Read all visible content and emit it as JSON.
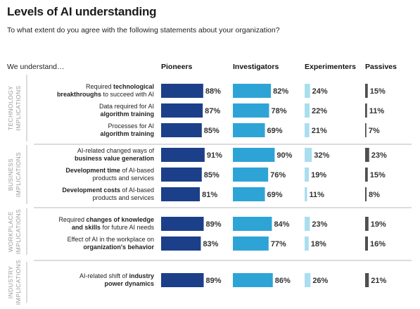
{
  "title": "Levels of AI understanding",
  "subtitle": "To what extent do you agree with the following statements about your organization?",
  "lead": "We understand…",
  "colors": {
    "Pioneers": "#1c3f8a",
    "Investigators": "#2ea4d6",
    "Experimenters": "#a9deef",
    "Passives": "#4f4f4f",
    "highlight": "#8b1a2b",
    "divider": "#b9b9b9",
    "category": "#9a9a9a"
  },
  "chart_data": {
    "type": "bar",
    "orientation": "horizontal",
    "title": "Levels of AI understanding",
    "subtitle": "To what extent do you agree with the following statements about your organization?",
    "series_names": [
      "Pioneers",
      "Investigators",
      "Experimenters",
      "Passives"
    ],
    "groups": [
      {
        "label": [
          "TECHNOLOGY",
          "IMPLICATIONS"
        ],
        "rows": [
          {
            "label_lines": [
              [
                [
                  "Required ",
                  false
                ],
                [
                  "technological",
                  true
                ]
              ],
              [
                [
                  "breakthroughs",
                  true
                ],
                [
                  " to succeed with AI",
                  false
                ]
              ]
            ],
            "values": [
              88,
              82,
              24,
              15
            ],
            "highlight": []
          },
          {
            "label_lines": [
              [
                [
                  "Data required for AI",
                  false
                ]
              ],
              [
                [
                  "algorithm training",
                  true
                ]
              ]
            ],
            "values": [
              87,
              78,
              22,
              11
            ],
            "highlight": [
              0
            ]
          },
          {
            "label_lines": [
              [
                [
                  "Processes for AI",
                  false
                ]
              ],
              [
                [
                  "algorithm training",
                  true
                ]
              ]
            ],
            "values": [
              85,
              69,
              21,
              7
            ],
            "highlight": [
              0,
              3
            ]
          }
        ]
      },
      {
        "label": [
          "BUSINESS",
          "IMPLICATIONS"
        ],
        "rows": [
          {
            "label_lines": [
              [
                [
                  "AI-related changed ways of",
                  false
                ]
              ],
              [
                [
                  "business value generation",
                  true
                ]
              ]
            ],
            "values": [
              91,
              90,
              32,
              23
            ],
            "highlight": []
          },
          {
            "label_lines": [
              [
                [
                  "Development time",
                  true
                ],
                [
                  " of AI-based",
                  false
                ]
              ],
              [
                [
                  "products and services",
                  false
                ]
              ]
            ],
            "values": [
              85,
              76,
              19,
              15
            ],
            "highlight": []
          },
          {
            "label_lines": [
              [
                [
                  "Development costs",
                  true
                ],
                [
                  " of AI-based",
                  false
                ]
              ],
              [
                [
                  "products and services",
                  false
                ]
              ]
            ],
            "values": [
              81,
              69,
              11,
              8
            ],
            "highlight": [
              0,
              3
            ]
          }
        ]
      },
      {
        "label": [
          "WORKPLACE",
          "IMPLICATIONS"
        ],
        "rows": [
          {
            "label_lines": [
              [
                [
                  "Required ",
                  false
                ],
                [
                  "changes of knowledge",
                  true
                ]
              ],
              [
                [
                  "and skills",
                  true
                ],
                [
                  " for future AI needs",
                  false
                ]
              ]
            ],
            "values": [
              89,
              84,
              23,
              19
            ],
            "highlight": []
          },
          {
            "label_lines": [
              [
                [
                  "Effect of AI in the workplace on",
                  false
                ]
              ],
              [
                [
                  "organization's behavior",
                  true
                ]
              ]
            ],
            "values": [
              83,
              77,
              18,
              16
            ],
            "highlight": []
          }
        ]
      },
      {
        "label": [
          "INDUSTRY",
          "IMPLICATIONS"
        ],
        "rows": [
          {
            "label_lines": [
              [
                [
                  "AI-related shift of ",
                  false
                ],
                [
                  "industry",
                  true
                ]
              ],
              [
                [
                  "power dynamics",
                  true
                ]
              ]
            ],
            "values": [
              89,
              86,
              26,
              21
            ],
            "highlight": []
          }
        ]
      }
    ]
  }
}
